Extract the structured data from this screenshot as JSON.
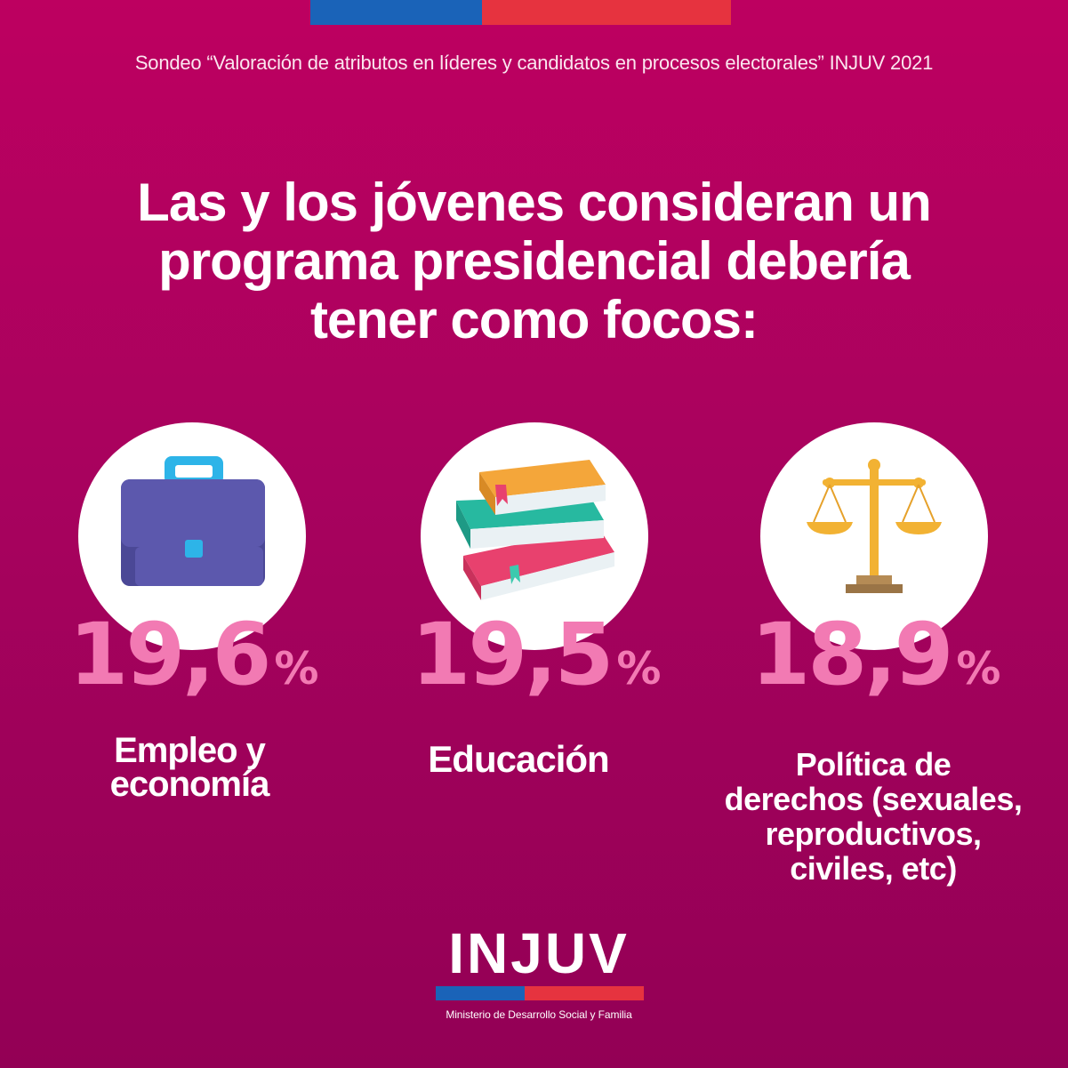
{
  "source_line": "Sondeo “Valoración de atributos en líderes y candidatos en procesos electorales” INJUV 2021",
  "headline": "Las y los jóvenes consideran un programa presidencial debería tener como focos:",
  "stats": [
    {
      "value": "19,6",
      "unit": "%",
      "label": "Empleo y economía",
      "icon": "briefcase-icon"
    },
    {
      "value": "19,5",
      "unit": "%",
      "label": "Educación",
      "icon": "books-icon"
    },
    {
      "value": "18,9",
      "unit": "%",
      "label": "Política de derechos (sexuales, reproductivos, civiles, etc)",
      "icon": "scales-icon"
    }
  ],
  "logo": {
    "name": "INJUV",
    "subtitle": "Ministerio de Desarrollo Social y Familia"
  },
  "colors": {
    "background_top": "#bd0060",
    "background_bottom": "#930055",
    "accent_pink": "#f27ab3",
    "flag_blue": "#1a63b8",
    "flag_red": "#e6333f"
  }
}
